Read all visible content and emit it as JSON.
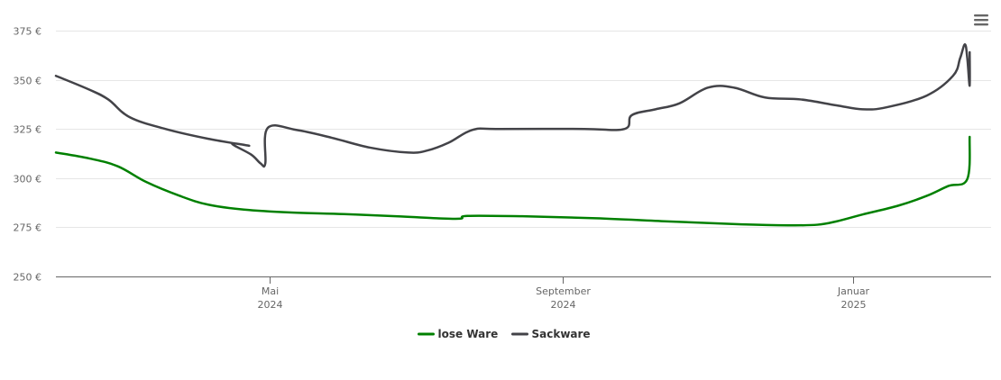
{
  "chart_data": {
    "type": "line",
    "title": "",
    "xlabel": "",
    "ylabel": "",
    "ylim": [
      250,
      375
    ],
    "y_ticks": [
      250,
      275,
      300,
      325,
      350,
      375
    ],
    "y_tick_format": "{v} €",
    "xlim": [
      "2024-02-01",
      "2025-02-28"
    ],
    "x_ticks": [
      {
        "date": "2024-05-01",
        "line1": "Mai",
        "line2": "2024"
      },
      {
        "date": "2024-09-01",
        "line1": "September",
        "line2": "2024"
      },
      {
        "date": "2025-01-01",
        "line1": "Januar",
        "line2": "2025"
      }
    ],
    "grid": true,
    "legend_position": "bottom",
    "series": [
      {
        "name": "lose Ware",
        "color": "#008000",
        "points": [
          [
            "2024-02-01",
            313
          ],
          [
            "2024-02-15",
            310
          ],
          [
            "2024-02-27",
            306
          ],
          [
            "2024-03-10",
            298
          ],
          [
            "2024-03-24",
            291
          ],
          [
            "2024-04-05",
            286.5
          ],
          [
            "2024-04-20",
            284
          ],
          [
            "2024-05-10",
            282.5
          ],
          [
            "2024-06-01",
            281.7
          ],
          [
            "2024-06-25",
            280.5
          ],
          [
            "2024-07-10",
            279.6
          ],
          [
            "2024-07-20",
            279.4
          ],
          [
            "2024-07-23",
            280.8
          ],
          [
            "2024-08-15",
            280.6
          ],
          [
            "2024-09-15",
            279.6
          ],
          [
            "2024-10-15",
            278
          ],
          [
            "2024-11-15",
            276.5
          ],
          [
            "2024-12-05",
            276
          ],
          [
            "2024-12-17",
            276.3
          ],
          [
            "2024-12-25",
            278
          ],
          [
            "2025-01-05",
            281.5
          ],
          [
            "2025-01-20",
            286
          ],
          [
            "2025-02-01",
            291
          ],
          [
            "2025-02-10",
            296
          ],
          [
            "2025-02-18",
            299.5
          ],
          [
            "2025-02-19",
            321
          ]
        ]
      },
      {
        "name": "Sackware",
        "color": "#434348",
        "points": [
          [
            "2024-02-01",
            352
          ],
          [
            "2024-02-15",
            345
          ],
          [
            "2024-02-23",
            340
          ],
          [
            "2024-03-03",
            331
          ],
          [
            "2024-03-18",
            325
          ],
          [
            "2024-04-05",
            320
          ],
          [
            "2024-04-22",
            316.5
          ],
          [
            "2024-04-15",
            317.5
          ],
          [
            "2024-04-23",
            312
          ],
          [
            "2024-04-27",
            307.5
          ],
          [
            "2024-04-29",
            307.5
          ],
          [
            "2024-04-30",
            325.5
          ],
          [
            "2024-05-12",
            324.5
          ],
          [
            "2024-05-27",
            320.5
          ],
          [
            "2024-06-12",
            315.5
          ],
          [
            "2024-06-28",
            313
          ],
          [
            "2024-07-06",
            314
          ],
          [
            "2024-07-15",
            318
          ],
          [
            "2024-07-25",
            324.5
          ],
          [
            "2024-08-05",
            325
          ],
          [
            "2024-09-10",
            325
          ],
          [
            "2024-09-27",
            325
          ],
          [
            "2024-09-30",
            332
          ],
          [
            "2024-10-10",
            335
          ],
          [
            "2024-10-20",
            338
          ],
          [
            "2024-11-01",
            346
          ],
          [
            "2024-11-12",
            346
          ],
          [
            "2024-11-25",
            341
          ],
          [
            "2024-12-10",
            340
          ],
          [
            "2024-12-25",
            337
          ],
          [
            "2025-01-05",
            335
          ],
          [
            "2025-01-15",
            336
          ],
          [
            "2025-02-01",
            342
          ],
          [
            "2025-02-12",
            352
          ],
          [
            "2025-02-15",
            361
          ],
          [
            "2025-02-17",
            368
          ],
          [
            "2025-02-18",
            361
          ],
          [
            "2025-02-19",
            347
          ],
          [
            "2025-02-19",
            364
          ]
        ]
      }
    ]
  },
  "menu": {
    "icon": "hamburger-menu-icon"
  }
}
